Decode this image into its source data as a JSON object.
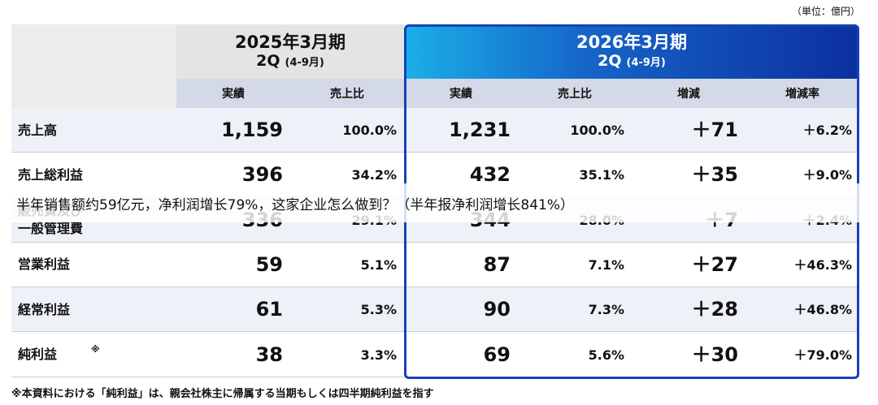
{
  "unit": "（単位：億円）",
  "periods": [
    {
      "title": "2025年3月期",
      "quarter": "2Q",
      "range": "(4-9月)"
    },
    {
      "title": "2026年3月期",
      "quarter": "2Q",
      "range": "(4-9月)"
    }
  ],
  "columns": [
    "実績",
    "売上比",
    "実績",
    "売上比",
    "増減",
    "増減率"
  ],
  "rows": [
    {
      "label": "売上高",
      "cells": [
        "1,159",
        "100.0%",
        "1,231",
        "100.0%",
        "＋71",
        "＋6.2%"
      ]
    },
    {
      "label": "売上総利益",
      "cells": [
        "396",
        "34.2%",
        "432",
        "35.1%",
        "＋35",
        "＋9.0%"
      ]
    },
    {
      "label": "販売費及び一般管理費",
      "cells": [
        "336",
        "29.1%",
        "344",
        "28.0%",
        "＋7",
        "＋2.4%"
      ]
    },
    {
      "label": "営業利益",
      "cells": [
        "59",
        "5.1%",
        "87",
        "7.1%",
        "＋27",
        "＋46.3%"
      ]
    },
    {
      "label": "経常利益",
      "cells": [
        "61",
        "5.3%",
        "90",
        "7.3%",
        "＋28",
        "＋46.8%"
      ]
    },
    {
      "label": "純利益",
      "note": "※",
      "cells": [
        "38",
        "3.3%",
        "69",
        "5.6%",
        "＋30",
        "＋79.0%"
      ]
    }
  ],
  "footnote": "※本資料における「純利益」は、親会社株主に帰属する当期もしくは四半期純利益を指す",
  "overlay": "半年销售额约59亿元，净利润增长79%，这家企业怎么做到？（半年报净利润增长841%）"
}
